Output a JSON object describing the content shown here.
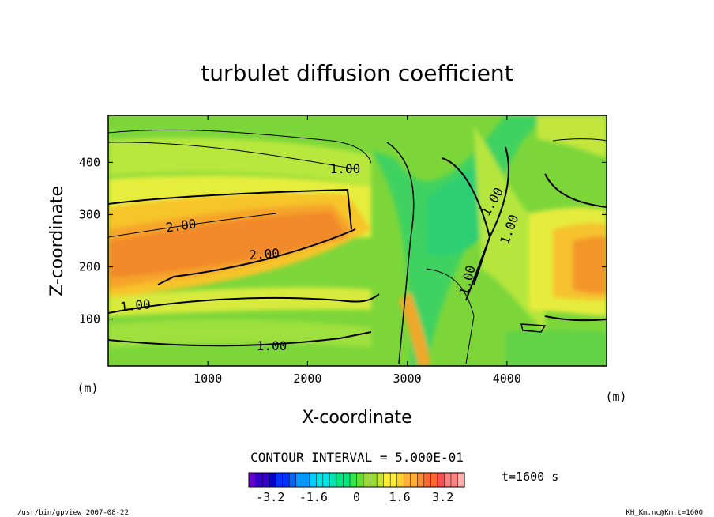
{
  "chart_data": {
    "type": "heatmap",
    "title": "turbulet diffusion coefficient",
    "xlabel": "X-coordinate",
    "ylabel": "Z-coordinate",
    "x_unit": "(m)",
    "y_unit": "(m)",
    "xlim": [
      0,
      5000
    ],
    "ylim": [
      10,
      490
    ],
    "x_ticks": [
      1000,
      2000,
      3000,
      4000
    ],
    "y_ticks": [
      100,
      200,
      300,
      400
    ],
    "contour_interval_text": "CONTOUR INTERVAL = 5.000E-01",
    "contour_labels": [
      "1.00",
      "2.00",
      "2.00",
      "1.00",
      "1.00",
      "1.00",
      "1.00",
      "1.00"
    ],
    "colorbar": {
      "range": [
        -4.0,
        4.0
      ],
      "tick_labels": [
        "-3.2",
        "-1.6",
        "0",
        "1.6",
        "3.2"
      ],
      "tick_values": [
        -3.2,
        -1.6,
        0,
        1.6,
        3.2
      ]
    },
    "time_label": "t=1600 s",
    "grid": false
  },
  "footer": {
    "left": "/usr/bin/gpview  2007-08-22",
    "right": "KH_Km.nc@Km,t=1600"
  }
}
